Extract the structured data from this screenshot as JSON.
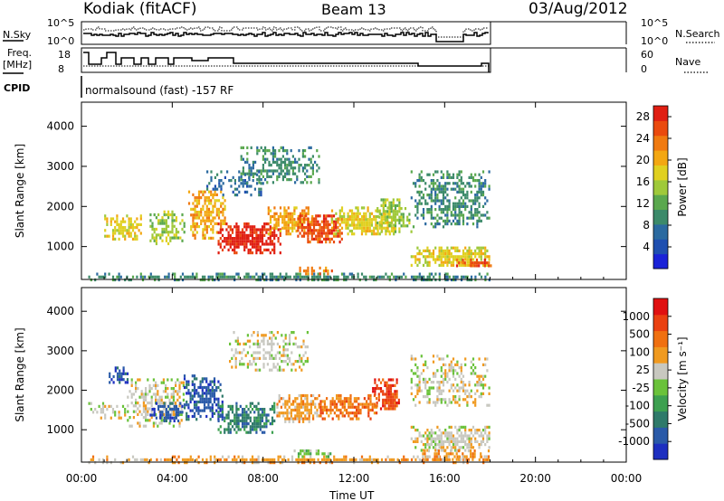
{
  "header": {
    "station": "Kodiak (fitACF)",
    "beam": "Beam 13",
    "date": "03/Aug/2012"
  },
  "summary_panels": {
    "nsky_label": "N.Sky",
    "nsky_ticks": [
      "10^5",
      "10^0"
    ],
    "nsearch_label": "N.Search",
    "nsearch_ticks": [
      "10^5",
      "10^0"
    ],
    "freq_label_line1": "Freq.",
    "freq_label_line2": "[MHz]",
    "freq_ticks": [
      "18",
      "8"
    ],
    "nave_label": "Nave",
    "nave_ticks": [
      "60",
      "0"
    ],
    "cpid_label": "CPID",
    "cpid_text": "normalsound (fast) -157 RF"
  },
  "chart_data": [
    {
      "type": "heatmap",
      "name": "power-panel",
      "ylabel": "Slant Range [km]",
      "xlabel": "",
      "x_ticks": [
        "00:00",
        "04:00",
        "08:00",
        "12:00",
        "16:00",
        "20:00",
        "00:00"
      ],
      "xlim_hours": [
        0,
        24
      ],
      "y_ticks": [
        1000,
        2000,
        3000,
        4000
      ],
      "ylim": [
        180,
        4600
      ],
      "colorbar": {
        "label": "Power [dB]",
        "ticks": [
          "4",
          "8",
          "12",
          "16",
          "20",
          "24",
          "28"
        ],
        "colors": [
          "#1a22d8",
          "#1f4fb0",
          "#2b6aa0",
          "#3c8a6a",
          "#5aa84e",
          "#9fc93a",
          "#e0d020",
          "#f3a712",
          "#f07a10",
          "#ea4a0e",
          "#e01e12"
        ]
      },
      "data_extent_hours": [
        0,
        18
      ],
      "scatter_regions": [
        {
          "t": [
            0.3,
            18
          ],
          "r": [
            200,
            350
          ],
          "level": 3,
          "density": 0.8
        },
        {
          "t": [
            1.0,
            2.6
          ],
          "r": [
            1200,
            1800
          ],
          "level": 6,
          "density": 0.75
        },
        {
          "t": [
            3.0,
            4.5
          ],
          "r": [
            1100,
            1900
          ],
          "level": 5,
          "density": 0.7
        },
        {
          "t": [
            4.7,
            6.3
          ],
          "r": [
            1200,
            2400
          ],
          "level": 7,
          "density": 0.75
        },
        {
          "t": [
            6.0,
            8.8
          ],
          "r": [
            850,
            1600
          ],
          "level": 10,
          "density": 0.9
        },
        {
          "t": [
            8.2,
            10.2
          ],
          "r": [
            1300,
            2000
          ],
          "level": 7,
          "density": 0.85
        },
        {
          "t": [
            9.5,
            11.5
          ],
          "r": [
            1100,
            1800
          ],
          "level": 9,
          "density": 0.9
        },
        {
          "t": [
            11.0,
            13.8
          ],
          "r": [
            1300,
            2000
          ],
          "level": 6,
          "density": 0.85
        },
        {
          "t": [
            13.0,
            14.5
          ],
          "r": [
            1400,
            2200
          ],
          "level": 5,
          "density": 0.7
        },
        {
          "t": [
            7.0,
            10.5
          ],
          "r": [
            2600,
            3500
          ],
          "level": 3,
          "density": 0.55
        },
        {
          "t": [
            5.5,
            8.0
          ],
          "r": [
            2300,
            2900
          ],
          "level": 2,
          "density": 0.4
        },
        {
          "t": [
            9.5,
            11.0
          ],
          "r": [
            350,
            500
          ],
          "level": 8,
          "density": 0.6
        },
        {
          "t": [
            14.5,
            18.0
          ],
          "r": [
            500,
            1000
          ],
          "level": 6,
          "density": 0.85
        },
        {
          "t": [
            14.5,
            18.0
          ],
          "r": [
            1500,
            2900
          ],
          "level": 3,
          "density": 0.6
        },
        {
          "t": [
            16.5,
            18.0
          ],
          "r": [
            500,
            700
          ],
          "level": 9,
          "density": 0.8
        }
      ]
    },
    {
      "type": "heatmap",
      "name": "velocity-panel",
      "ylabel": "Slant Range [km]",
      "xlabel": "Time UT",
      "x_ticks": [
        "00:00",
        "04:00",
        "08:00",
        "12:00",
        "16:00",
        "20:00",
        "00:00"
      ],
      "xlim_hours": [
        0,
        24
      ],
      "y_ticks": [
        1000,
        2000,
        3000,
        4000
      ],
      "ylim": [
        180,
        4600
      ],
      "colorbar": {
        "label": "Velocity [m s⁻¹]",
        "ticks": [
          "1000",
          "500",
          "100",
          "25",
          "-25",
          "-100",
          "-500",
          "-1000"
        ],
        "colors": [
          "#1d2fc0",
          "#2a5aa8",
          "#2f7a6a",
          "#3da050",
          "#6ac23a",
          "#c8c8c0",
          "#f09a20",
          "#f07010",
          "#ea4010",
          "#e01010"
        ]
      },
      "data_extent_hours": [
        0,
        18
      ],
      "scatter_regions": [
        {
          "t": [
            0.3,
            18
          ],
          "r": [
            200,
            350
          ],
          "level": 6,
          "density": 0.7
        },
        {
          "t": [
            0.3,
            2.0
          ],
          "r": [
            1300,
            1700
          ],
          "level": 5,
          "density": 0.5
        },
        {
          "t": [
            1.2,
            2.0
          ],
          "r": [
            2200,
            2600
          ],
          "level": 1,
          "density": 0.7
        },
        {
          "t": [
            2.0,
            4.5
          ],
          "r": [
            1100,
            2300
          ],
          "level": 5,
          "density": 0.6
        },
        {
          "t": [
            3.0,
            4.5
          ],
          "r": [
            1200,
            1700
          ],
          "level": 1,
          "density": 0.7
        },
        {
          "t": [
            4.5,
            6.2
          ],
          "r": [
            1300,
            2400
          ],
          "level": 1,
          "density": 0.75
        },
        {
          "t": [
            6.0,
            8.5
          ],
          "r": [
            900,
            1700
          ],
          "level": 2,
          "density": 0.8
        },
        {
          "t": [
            8.5,
            10.5
          ],
          "r": [
            1200,
            1900
          ],
          "level": 6,
          "density": 0.85
        },
        {
          "t": [
            10.5,
            13.0
          ],
          "r": [
            1300,
            1900
          ],
          "level": 7,
          "density": 0.85
        },
        {
          "t": [
            12.8,
            14.0
          ],
          "r": [
            1500,
            2300
          ],
          "level": 8,
          "density": 0.85
        },
        {
          "t": [
            9.0,
            11.0
          ],
          "r": [
            350,
            500
          ],
          "level": 4,
          "density": 0.7
        },
        {
          "t": [
            6.5,
            10.0
          ],
          "r": [
            2500,
            3500
          ],
          "level": 5,
          "density": 0.45
        },
        {
          "t": [
            14.5,
            18.0
          ],
          "r": [
            500,
            1100
          ],
          "level": 5,
          "density": 0.8
        },
        {
          "t": [
            14.5,
            18.0
          ],
          "r": [
            1600,
            2900
          ],
          "level": 5,
          "density": 0.5
        },
        {
          "t": [
            15.0,
            18.0
          ],
          "r": [
            250,
            500
          ],
          "level": 6,
          "density": 0.7
        }
      ]
    }
  ]
}
